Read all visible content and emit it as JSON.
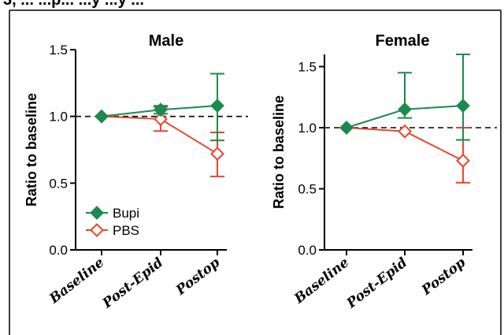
{
  "header_text": "3, ... ...p... ...y ...y ...",
  "chart_data": [
    {
      "type": "line",
      "title": "Male",
      "ylabel": "Ratio to baseline",
      "xlabel": "",
      "categories": [
        "Baseline",
        "Post-Epid",
        "Postop"
      ],
      "ylim": [
        0,
        1.5
      ],
      "yticks": [
        "0.0",
        "0.5",
        "1.0",
        "1.5"
      ],
      "reference_line": 1.0,
      "series": [
        {
          "name": "Bupi",
          "color": "#1b8a4e",
          "marker": "filled-diamond",
          "values": [
            1.0,
            1.05,
            1.08
          ],
          "err_low": [
            1.0,
            1.02,
            0.82
          ],
          "err_high": [
            1.0,
            1.08,
            1.32
          ]
        },
        {
          "name": "PBS",
          "color": "#e8452c",
          "marker": "open-diamond",
          "values": [
            1.0,
            0.98,
            0.72
          ],
          "err_low": [
            1.0,
            0.89,
            0.55
          ],
          "err_high": [
            1.0,
            1.07,
            0.88
          ]
        }
      ],
      "legend": "bottom-left"
    },
    {
      "type": "line",
      "title": "Female",
      "ylabel": "Ratio to baseline",
      "xlabel": "",
      "categories": [
        "Baseline",
        "Post-Epid",
        "Postop"
      ],
      "ylim": [
        0,
        1.6
      ],
      "yticks": [
        "0.0",
        "0.5",
        "1.0",
        "1.5"
      ],
      "reference_line": 1.0,
      "series": [
        {
          "name": "Bupi",
          "color": "#1b8a4e",
          "marker": "filled-diamond",
          "values": [
            1.0,
            1.15,
            1.18
          ],
          "err_low": [
            1.0,
            1.08,
            0.9
          ],
          "err_high": [
            1.0,
            1.45,
            1.6
          ]
        },
        {
          "name": "PBS",
          "color": "#e8452c",
          "marker": "open-diamond",
          "values": [
            1.0,
            0.97,
            0.73
          ],
          "err_low": [
            1.0,
            0.97,
            0.55
          ],
          "err_high": [
            1.0,
            0.97,
            1.0
          ]
        }
      ]
    }
  ]
}
